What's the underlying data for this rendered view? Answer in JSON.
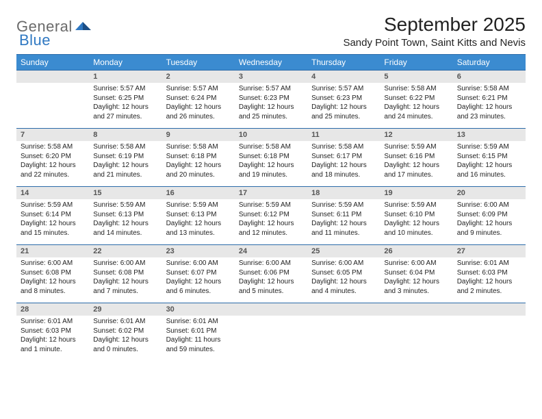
{
  "logo": {
    "general": "General",
    "blue": "Blue"
  },
  "colors": {
    "header_bg": "#3b8bd0",
    "header_text": "#ffffff",
    "daynum_bg": "#e7e7e7",
    "daynum_text": "#555555",
    "row_border": "#2a6aa8",
    "body_text": "#222222",
    "logo_gray": "#6a6a6a",
    "logo_blue": "#2f78c2"
  },
  "title": "September 2025",
  "location": "Sandy Point Town, Saint Kitts and Nevis",
  "dow": [
    "Sunday",
    "Monday",
    "Tuesday",
    "Wednesday",
    "Thursday",
    "Friday",
    "Saturday"
  ],
  "weeks": [
    {
      "nums": [
        "",
        "1",
        "2",
        "3",
        "4",
        "5",
        "6"
      ],
      "cells": [
        null,
        {
          "sunrise": "5:57 AM",
          "sunset": "6:25 PM",
          "daylight": "12 hours and 27 minutes."
        },
        {
          "sunrise": "5:57 AM",
          "sunset": "6:24 PM",
          "daylight": "12 hours and 26 minutes."
        },
        {
          "sunrise": "5:57 AM",
          "sunset": "6:23 PM",
          "daylight": "12 hours and 25 minutes."
        },
        {
          "sunrise": "5:57 AM",
          "sunset": "6:23 PM",
          "daylight": "12 hours and 25 minutes."
        },
        {
          "sunrise": "5:58 AM",
          "sunset": "6:22 PM",
          "daylight": "12 hours and 24 minutes."
        },
        {
          "sunrise": "5:58 AM",
          "sunset": "6:21 PM",
          "daylight": "12 hours and 23 minutes."
        }
      ]
    },
    {
      "nums": [
        "7",
        "8",
        "9",
        "10",
        "11",
        "12",
        "13"
      ],
      "cells": [
        {
          "sunrise": "5:58 AM",
          "sunset": "6:20 PM",
          "daylight": "12 hours and 22 minutes."
        },
        {
          "sunrise": "5:58 AM",
          "sunset": "6:19 PM",
          "daylight": "12 hours and 21 minutes."
        },
        {
          "sunrise": "5:58 AM",
          "sunset": "6:18 PM",
          "daylight": "12 hours and 20 minutes."
        },
        {
          "sunrise": "5:58 AM",
          "sunset": "6:18 PM",
          "daylight": "12 hours and 19 minutes."
        },
        {
          "sunrise": "5:58 AM",
          "sunset": "6:17 PM",
          "daylight": "12 hours and 18 minutes."
        },
        {
          "sunrise": "5:59 AM",
          "sunset": "6:16 PM",
          "daylight": "12 hours and 17 minutes."
        },
        {
          "sunrise": "5:59 AM",
          "sunset": "6:15 PM",
          "daylight": "12 hours and 16 minutes."
        }
      ]
    },
    {
      "nums": [
        "14",
        "15",
        "16",
        "17",
        "18",
        "19",
        "20"
      ],
      "cells": [
        {
          "sunrise": "5:59 AM",
          "sunset": "6:14 PM",
          "daylight": "12 hours and 15 minutes."
        },
        {
          "sunrise": "5:59 AM",
          "sunset": "6:13 PM",
          "daylight": "12 hours and 14 minutes."
        },
        {
          "sunrise": "5:59 AM",
          "sunset": "6:13 PM",
          "daylight": "12 hours and 13 minutes."
        },
        {
          "sunrise": "5:59 AM",
          "sunset": "6:12 PM",
          "daylight": "12 hours and 12 minutes."
        },
        {
          "sunrise": "5:59 AM",
          "sunset": "6:11 PM",
          "daylight": "12 hours and 11 minutes."
        },
        {
          "sunrise": "5:59 AM",
          "sunset": "6:10 PM",
          "daylight": "12 hours and 10 minutes."
        },
        {
          "sunrise": "6:00 AM",
          "sunset": "6:09 PM",
          "daylight": "12 hours and 9 minutes."
        }
      ]
    },
    {
      "nums": [
        "21",
        "22",
        "23",
        "24",
        "25",
        "26",
        "27"
      ],
      "cells": [
        {
          "sunrise": "6:00 AM",
          "sunset": "6:08 PM",
          "daylight": "12 hours and 8 minutes."
        },
        {
          "sunrise": "6:00 AM",
          "sunset": "6:08 PM",
          "daylight": "12 hours and 7 minutes."
        },
        {
          "sunrise": "6:00 AM",
          "sunset": "6:07 PM",
          "daylight": "12 hours and 6 minutes."
        },
        {
          "sunrise": "6:00 AM",
          "sunset": "6:06 PM",
          "daylight": "12 hours and 5 minutes."
        },
        {
          "sunrise": "6:00 AM",
          "sunset": "6:05 PM",
          "daylight": "12 hours and 4 minutes."
        },
        {
          "sunrise": "6:00 AM",
          "sunset": "6:04 PM",
          "daylight": "12 hours and 3 minutes."
        },
        {
          "sunrise": "6:01 AM",
          "sunset": "6:03 PM",
          "daylight": "12 hours and 2 minutes."
        }
      ]
    },
    {
      "nums": [
        "28",
        "29",
        "30",
        "",
        "",
        "",
        ""
      ],
      "cells": [
        {
          "sunrise": "6:01 AM",
          "sunset": "6:03 PM",
          "daylight": "12 hours and 1 minute."
        },
        {
          "sunrise": "6:01 AM",
          "sunset": "6:02 PM",
          "daylight": "12 hours and 0 minutes."
        },
        {
          "sunrise": "6:01 AM",
          "sunset": "6:01 PM",
          "daylight": "11 hours and 59 minutes."
        },
        null,
        null,
        null,
        null
      ]
    }
  ],
  "labels": {
    "sunrise": "Sunrise: ",
    "sunset": "Sunset: ",
    "daylight": "Daylight: "
  }
}
